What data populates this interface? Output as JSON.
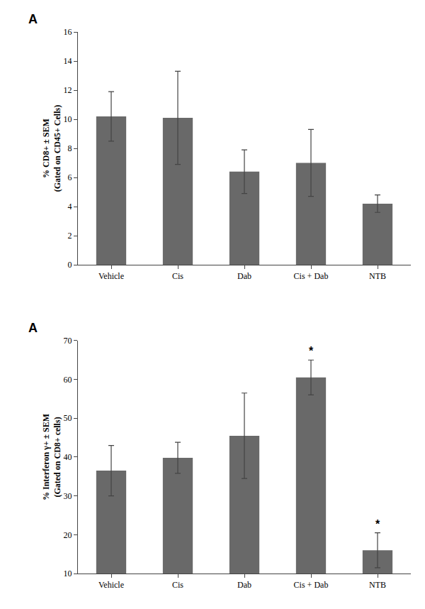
{
  "chart_data": [
    {
      "type": "bar",
      "categories": [
        "Vehicle",
        "Cis",
        "Dab",
        "Cis + Dab",
        "NTB"
      ],
      "values": [
        10.2,
        10.1,
        6.4,
        7.0,
        4.2
      ],
      "errors": [
        1.7,
        3.2,
        1.5,
        2.3,
        0.6
      ],
      "ylabel": "% CD8+ ± SEM\n(Gated on CD45+ Cells)",
      "ylim": [
        0,
        16
      ],
      "yticks": [
        0,
        2,
        4,
        6,
        8,
        10,
        12,
        14,
        16
      ],
      "color": "#696969",
      "grid": false,
      "annotations": [
        {
          "text": "A"
        }
      ]
    },
    {
      "type": "bar",
      "categories": [
        "Vehicle",
        "Cis",
        "Dab",
        "Cis + Dab",
        "NTB"
      ],
      "values": [
        36.5,
        39.8,
        45.5,
        60.5,
        16.0
      ],
      "errors": [
        6.5,
        4.0,
        11.0,
        4.5,
        4.5
      ],
      "ylabel": "% Interferon γ+ ± SEM\n(Gated on CD8+ cells)",
      "ylim": [
        10,
        70
      ],
      "yticks": [
        10,
        20,
        30,
        40,
        50,
        60,
        70
      ],
      "color": "#696969",
      "grid": false,
      "annotations": [
        {
          "text": "A"
        },
        {
          "text": "*",
          "category": "Cis + Dab"
        },
        {
          "text": "*",
          "category": "NTB"
        }
      ]
    }
  ]
}
